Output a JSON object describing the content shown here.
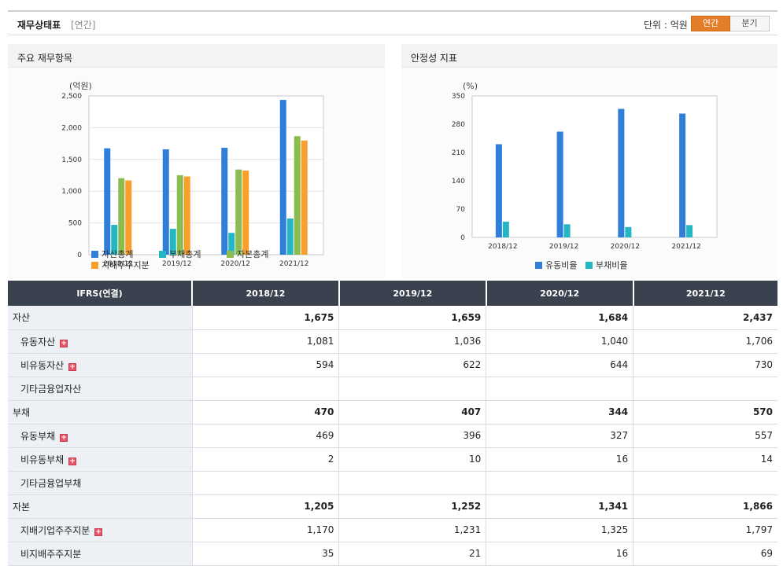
{
  "header": {
    "title": "재무상태표",
    "subtitle": "[연간]",
    "unit": "단위 : 억원",
    "toggle": [
      "연간",
      "분기"
    ]
  },
  "colors": {
    "asset": "#2f7ed8",
    "liability": "#25b6c4",
    "equity": "#8cbc4f",
    "controlling": "#f9a02c",
    "accent": "#e37e27",
    "table_header": "#3a4250"
  },
  "left_panel": {
    "title": "주요 재무항목"
  },
  "right_panel": {
    "title": "안정성 지표"
  },
  "chart_data": [
    {
      "type": "bar",
      "ylabel": "(억원)",
      "categories": [
        "2018/12",
        "2019/12",
        "2020/12",
        "2021/12"
      ],
      "ylim": [
        0,
        2500
      ],
      "yticks": [
        0,
        500,
        1000,
        1500,
        2000,
        2500
      ],
      "ytick_labels": [
        "0",
        "500",
        "1,000",
        "1,500",
        "2,000",
        "2,500"
      ],
      "grid": true,
      "legend_position": "bottom",
      "series": [
        {
          "name": "자산총계",
          "values": [
            1675,
            1659,
            1684,
            2437
          ]
        },
        {
          "name": "부채총계",
          "values": [
            470,
            407,
            344,
            570
          ]
        },
        {
          "name": "자본총계",
          "values": [
            1205,
            1252,
            1341,
            1866
          ]
        },
        {
          "name": "지배주주지분",
          "values": [
            1170,
            1231,
            1325,
            1797
          ]
        }
      ]
    },
    {
      "type": "bar",
      "ylabel": "(%)",
      "categories": [
        "2018/12",
        "2019/12",
        "2020/12",
        "2021/12"
      ],
      "ylim": [
        0,
        350
      ],
      "yticks": [
        0,
        70,
        140,
        210,
        280,
        350
      ],
      "ytick_labels": [
        "0",
        "70",
        "140",
        "210",
        "280",
        "350"
      ],
      "grid": false,
      "legend_position": "bottom",
      "series": [
        {
          "name": "유동비율",
          "values": [
            230.5,
            261.6,
            318.0,
            306.3
          ]
        },
        {
          "name": "부채비율",
          "values": [
            39.0,
            32.5,
            25.7,
            30.5
          ]
        }
      ]
    }
  ],
  "table": {
    "columns": [
      "IFRS(연결)",
      "2018/12",
      "2019/12",
      "2020/12",
      "2021/12"
    ],
    "rows": [
      {
        "label": "자산",
        "values": [
          "1,675",
          "1,659",
          "1,684",
          "2,437"
        ],
        "bold": true,
        "child": false,
        "plus": false
      },
      {
        "label": "유동자산",
        "values": [
          "1,081",
          "1,036",
          "1,040",
          "1,706"
        ],
        "bold": false,
        "child": true,
        "plus": true
      },
      {
        "label": "비유동자산",
        "values": [
          "594",
          "622",
          "644",
          "730"
        ],
        "bold": false,
        "child": true,
        "plus": true
      },
      {
        "label": "기타금융업자산",
        "values": [
          "",
          "",
          "",
          ""
        ],
        "bold": false,
        "child": true,
        "plus": false
      },
      {
        "label": "부채",
        "values": [
          "470",
          "407",
          "344",
          "570"
        ],
        "bold": true,
        "child": false,
        "plus": false
      },
      {
        "label": "유동부채",
        "values": [
          "469",
          "396",
          "327",
          "557"
        ],
        "bold": false,
        "child": true,
        "plus": true
      },
      {
        "label": "비유동부채",
        "values": [
          "2",
          "10",
          "16",
          "14"
        ],
        "bold": false,
        "child": true,
        "plus": true
      },
      {
        "label": "기타금융업부채",
        "values": [
          "",
          "",
          "",
          ""
        ],
        "bold": false,
        "child": true,
        "plus": false
      },
      {
        "label": "자본",
        "values": [
          "1,205",
          "1,252",
          "1,341",
          "1,866"
        ],
        "bold": true,
        "child": false,
        "plus": false
      },
      {
        "label": "지배기업주주지분",
        "values": [
          "1,170",
          "1,231",
          "1,325",
          "1,797"
        ],
        "bold": false,
        "child": true,
        "plus": true
      },
      {
        "label": "비지배주주지분",
        "values": [
          "35",
          "21",
          "16",
          "69"
        ],
        "bold": false,
        "child": true,
        "plus": false
      }
    ]
  }
}
